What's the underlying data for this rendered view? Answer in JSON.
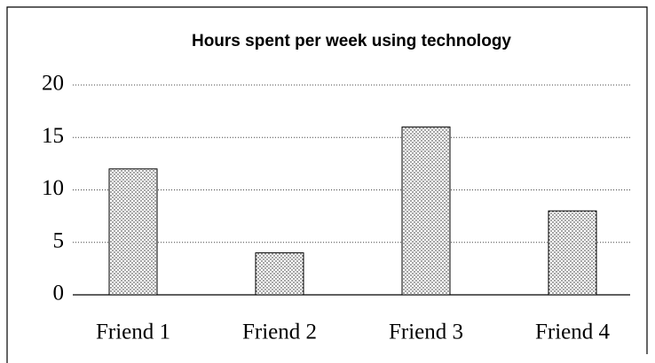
{
  "chart_data": {
    "type": "bar",
    "title": "Hours spent per week using technology",
    "categories": [
      "Friend 1",
      "Friend 2",
      "Friend 3",
      "Friend 4"
    ],
    "values": [
      12,
      4,
      16,
      8
    ],
    "ylim": [
      0,
      20
    ],
    "yticks": [
      0,
      5,
      10,
      15,
      20
    ],
    "grid": true
  }
}
